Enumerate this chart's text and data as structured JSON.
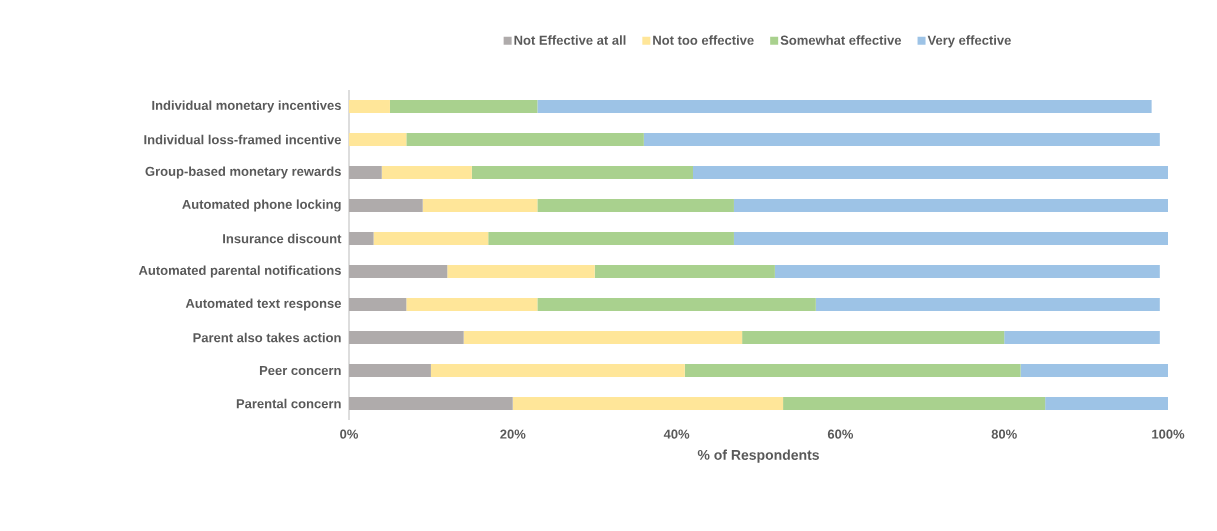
{
  "chart_data": {
    "type": "bar",
    "orientation": "horizontal",
    "stacked": true,
    "xlabel": "% of Respondents",
    "categories": [
      "Individual monetary incentives",
      "Individual loss-framed incentive",
      "Group-based monetary rewards",
      "Automated phone locking",
      "Insurance discount",
      "Automated parental notifications",
      "Automated text response",
      "Parent also takes action",
      "Peer concern",
      "Parental concern"
    ],
    "series": [
      {
        "name": "Not Effective at all",
        "color": "#afabab",
        "values": [
          0,
          0,
          4,
          9,
          3,
          12,
          7,
          14,
          10,
          20
        ]
      },
      {
        "name": "Not too effective",
        "color": "#ffe699",
        "values": [
          5,
          7,
          11,
          14,
          14,
          18,
          16,
          34,
          31,
          33
        ]
      },
      {
        "name": "Somewhat effective",
        "color": "#a9d18e",
        "values": [
          18,
          29,
          27,
          24,
          30,
          22,
          34,
          32,
          41,
          32
        ]
      },
      {
        "name": "Very effective",
        "color": "#9dc3e6",
        "values": [
          75,
          63,
          58,
          53,
          53,
          47,
          42,
          19,
          18,
          15
        ]
      }
    ],
    "xlim": [
      0,
      100
    ],
    "xticks": [
      {
        "value": 0,
        "label": "0%"
      },
      {
        "value": 20,
        "label": "20%"
      },
      {
        "value": 40,
        "label": "40%"
      },
      {
        "value": 60,
        "label": "60%"
      },
      {
        "value": 80,
        "label": "80%"
      },
      {
        "value": 100,
        "label": "100%"
      }
    ],
    "grid": false,
    "legend": "top"
  }
}
